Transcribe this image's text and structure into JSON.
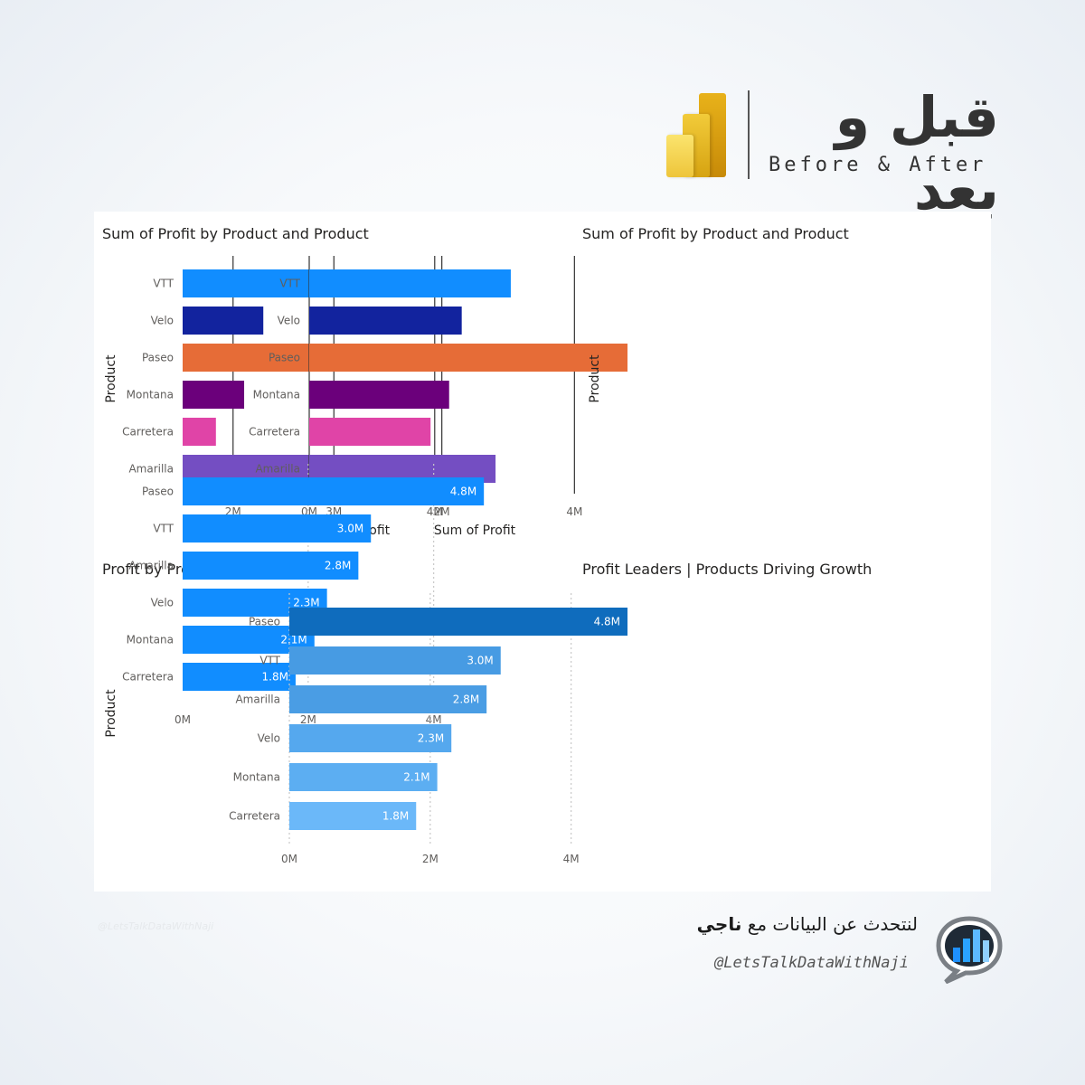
{
  "header": {
    "title_ar": "قبل و بعد",
    "title_en": "Before & After",
    "logo_icon": "power-bi-logo-icon"
  },
  "colors": {
    "bright_blue": "#118DFF",
    "dark_blue": "#12239E",
    "orange": "#E66C37",
    "purple": "#6B007B",
    "pink": "#E044A7",
    "violet": "#744EC2"
  },
  "chart_data": [
    {
      "id": "before_top",
      "type": "bar",
      "orientation": "horizontal",
      "title": "Sum of Profit by Product and Product",
      "xlabel": "Sum of Profit",
      "ylabel": "Product",
      "categories": [
        "VTT",
        "Velo",
        "Paseo",
        "Montana",
        "Carretera",
        "Amarilla"
      ],
      "values": [
        3.04,
        2.3,
        4.8,
        2.11,
        1.83,
        2.81
      ],
      "colors": [
        "#118DFF",
        "#12239E",
        "#E66C37",
        "#6B007B",
        "#E044A7",
        "#744EC2"
      ],
      "xlim": [
        1.5,
        4.8
      ],
      "xticks": [
        2,
        3,
        4
      ],
      "xtick_labels": [
        "2M",
        "3M",
        "4M"
      ],
      "grid": "solid",
      "data_labels": false
    },
    {
      "id": "before_bottom",
      "type": "bar",
      "orientation": "horizontal",
      "title": "Profit by Product",
      "xlabel": "Profit",
      "ylabel": "Product",
      "categories": [
        "Paseo",
        "VTT",
        "Amarilla",
        "Velo",
        "Montana",
        "Carretera"
      ],
      "values": [
        4.8,
        3.0,
        2.8,
        2.3,
        2.1,
        1.8
      ],
      "data_labels": [
        "4.8M",
        "3.0M",
        "2.8M",
        "2.3M",
        "2.1M",
        "1.8M"
      ],
      "colors": [
        "#118DFF",
        "#118DFF",
        "#118DFF",
        "#118DFF",
        "#118DFF",
        "#118DFF"
      ],
      "xlim": [
        0,
        5.1
      ],
      "xticks": [
        0,
        2,
        4
      ],
      "xtick_labels": [
        "0M",
        "2M",
        "4M"
      ],
      "grid": "dotted"
    },
    {
      "id": "after_top",
      "type": "bar",
      "orientation": "horizontal",
      "title": "Sum of Profit by Product and Product",
      "xlabel": "Sum of Profit",
      "ylabel": "Product",
      "categories": [
        "VTT",
        "Velo",
        "Paseo",
        "Montana",
        "Carretera",
        "Amarilla"
      ],
      "values": [
        3.04,
        2.3,
        4.8,
        2.11,
        1.83,
        2.81
      ],
      "colors": [
        "#118DFF",
        "#12239E",
        "#E66C37",
        "#6B007B",
        "#E044A7",
        "#744EC2"
      ],
      "xlim": [
        0,
        4.8
      ],
      "xticks": [
        0,
        2,
        4
      ],
      "xtick_labels": [
        "0M",
        "2M",
        "4M"
      ],
      "grid": "solid",
      "data_labels": false
    },
    {
      "id": "after_bottom",
      "type": "bar",
      "orientation": "horizontal",
      "title": "Profit Leaders | Products Driving Growth",
      "xlabel": "",
      "ylabel": "",
      "categories": [
        "Paseo",
        "VTT",
        "Amarilla",
        "Velo",
        "Montana",
        "Carretera"
      ],
      "values": [
        4.8,
        3.0,
        2.8,
        2.3,
        2.1,
        1.8
      ],
      "data_labels": [
        "4.8M",
        "3.0M",
        "2.8M",
        "2.3M",
        "2.1M",
        "1.8M"
      ],
      "colors": [
        "#0F6CBD",
        "#479BE3",
        "#4A9DE4",
        "#55A8EE",
        "#5CAEF2",
        "#6BB8F9"
      ],
      "xlim": [
        0,
        4.8
      ],
      "xticks": [
        0,
        2,
        4
      ],
      "xtick_labels": [
        "0M",
        "2M",
        "4M"
      ],
      "grid": "dotted"
    }
  ],
  "footer": {
    "tagline_plain": "لنتحدث عن البيانات مع ",
    "tagline_bold": "ناجي",
    "handle": "@LetsTalkDataWithNaji",
    "watermark": "@LetsTalkDataWithNaji",
    "logo_icon": "chat-bar-chart-logo-icon"
  }
}
